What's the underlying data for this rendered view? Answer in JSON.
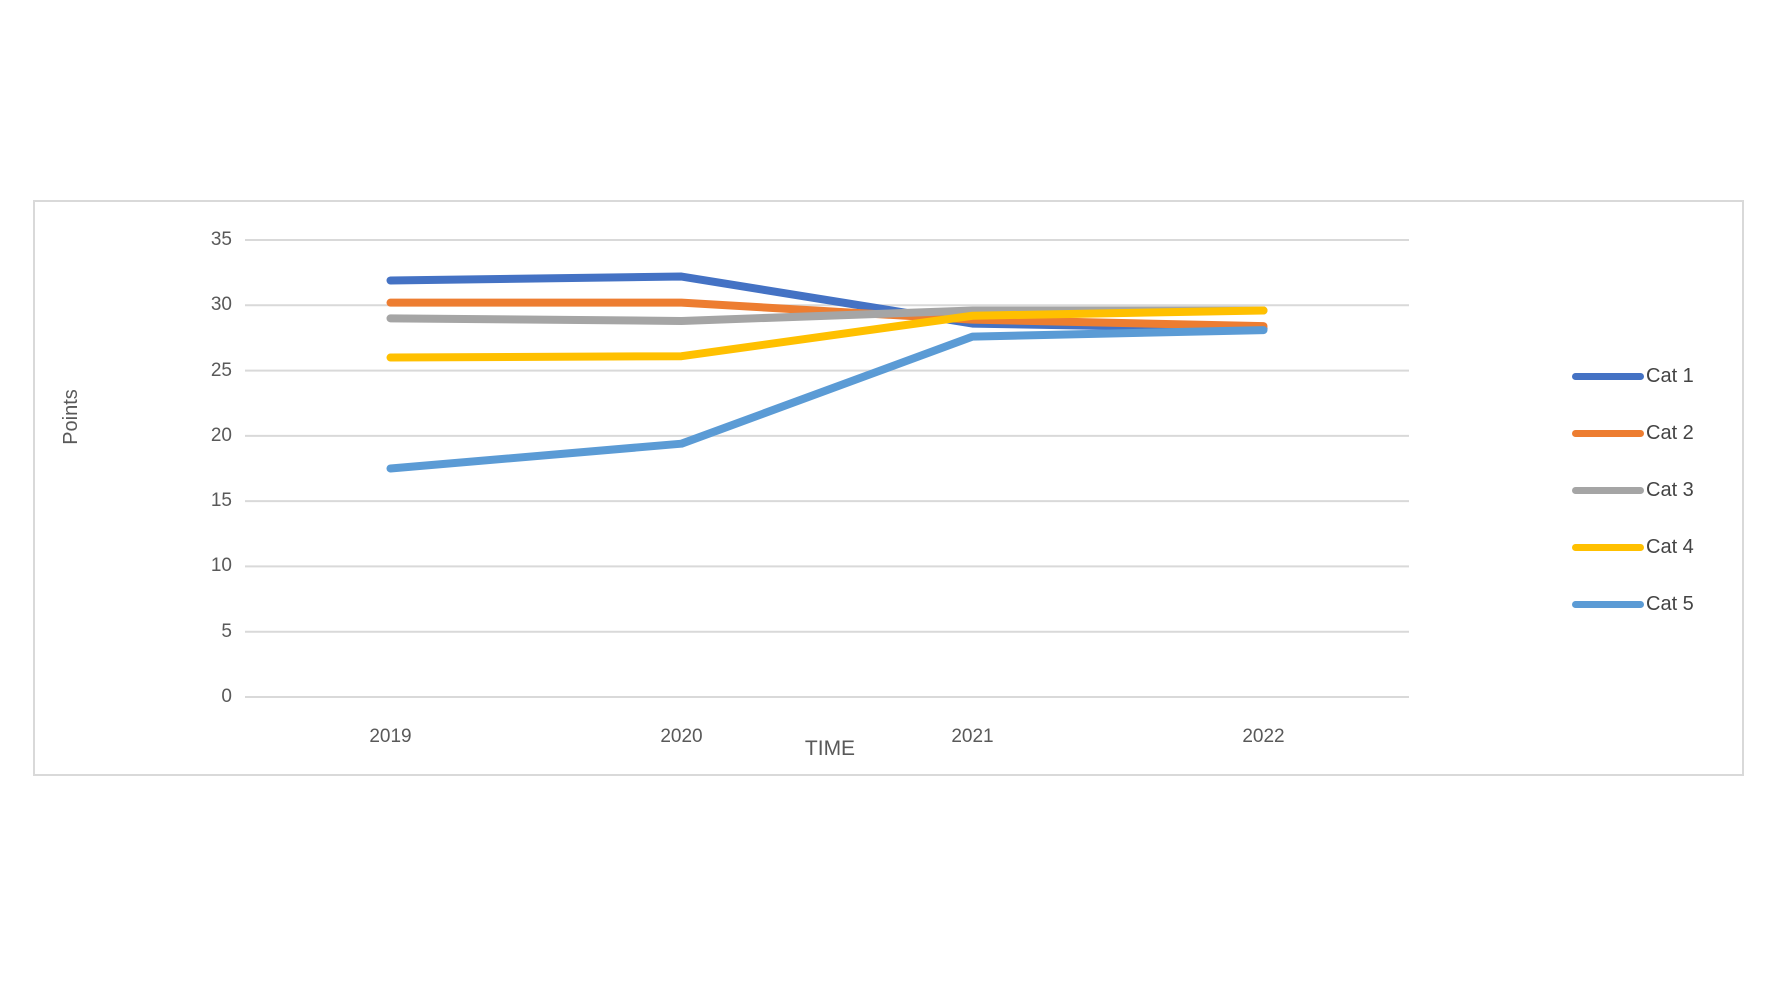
{
  "chart_data": {
    "type": "line",
    "title": "",
    "xlabel": "TIME",
    "ylabel": "Points",
    "categories": [
      "2019",
      "2020",
      "2021",
      "2022"
    ],
    "series": [
      {
        "name": "Cat 1",
        "color": "#4472C4",
        "values": [
          31.9,
          32.2,
          28.6,
          28.2
        ]
      },
      {
        "name": "Cat 2",
        "color": "#ED7D31",
        "values": [
          30.2,
          30.2,
          28.9,
          28.4
        ]
      },
      {
        "name": "Cat 3",
        "color": "#A5A5A5",
        "values": [
          29.0,
          28.8,
          29.6,
          29.6
        ]
      },
      {
        "name": "Cat 4",
        "color": "#FFC000",
        "values": [
          26.0,
          26.1,
          29.2,
          29.6
        ]
      },
      {
        "name": "Cat 5",
        "color": "#5B9BD5",
        "values": [
          17.5,
          19.4,
          27.6,
          28.1
        ]
      }
    ],
    "ylim": [
      0,
      35
    ],
    "ytick_step": 5,
    "yticks": [
      "0",
      "5",
      "10",
      "15",
      "20",
      "25",
      "30",
      "35"
    ],
    "grid": true,
    "legend_position": "right",
    "gridline_color": "#D9D9D9",
    "axis_text_color": "#595959",
    "legend_text_color": "#444444"
  }
}
